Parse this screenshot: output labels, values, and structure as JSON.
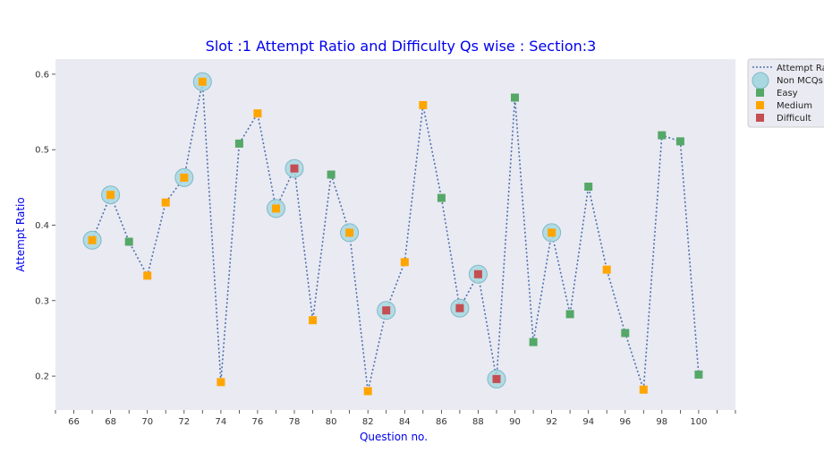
{
  "chart_data": {
    "type": "scatter",
    "title": "Slot :1 Attempt Ratio and Difficulty Qs wise :   Section:3",
    "xlabel": "Question no.",
    "ylabel": "Attempt Ratio",
    "xlim": [
      65,
      102
    ],
    "ylim": [
      0.155,
      0.62
    ],
    "x_ticks": [
      66,
      68,
      70,
      72,
      74,
      76,
      78,
      80,
      82,
      84,
      86,
      88,
      90,
      92,
      94,
      96,
      98,
      100
    ],
    "y_ticks": [
      0.2,
      0.3,
      0.4,
      0.5,
      0.6
    ],
    "y_tick_labels": [
      "0.2",
      "0.3",
      "0.4",
      "0.5",
      "0.6"
    ],
    "grid": false,
    "legend_position": "outside-top-right",
    "legend": {
      "line": "Attempt Rat",
      "non_mcq": "Non MCQs",
      "easy": "Easy",
      "medium": "Medium",
      "difficult": "Difficult"
    },
    "colors": {
      "background": "#eaeaf2",
      "line": "#4c72b0",
      "non_mcq": "#a8d8e0",
      "non_mcq_edge": "#7fb9c7",
      "easy": "#55a868",
      "medium": "#ffa500",
      "difficult": "#c44e52",
      "title": "#0000ee"
    },
    "points": [
      {
        "x": 67,
        "y": 0.38,
        "difficulty": "medium",
        "non_mcq": true
      },
      {
        "x": 68,
        "y": 0.44,
        "difficulty": "medium",
        "non_mcq": true
      },
      {
        "x": 69,
        "y": 0.378,
        "difficulty": "easy",
        "non_mcq": false
      },
      {
        "x": 70,
        "y": 0.333,
        "difficulty": "medium",
        "non_mcq": false
      },
      {
        "x": 71,
        "y": 0.43,
        "difficulty": "medium",
        "non_mcq": false
      },
      {
        "x": 72,
        "y": 0.463,
        "difficulty": "medium",
        "non_mcq": true
      },
      {
        "x": 73,
        "y": 0.59,
        "difficulty": "medium",
        "non_mcq": true
      },
      {
        "x": 74,
        "y": 0.192,
        "difficulty": "medium",
        "non_mcq": false
      },
      {
        "x": 75,
        "y": 0.508,
        "difficulty": "easy",
        "non_mcq": false
      },
      {
        "x": 76,
        "y": 0.548,
        "difficulty": "medium",
        "non_mcq": false
      },
      {
        "x": 77,
        "y": 0.422,
        "difficulty": "medium",
        "non_mcq": true
      },
      {
        "x": 78,
        "y": 0.475,
        "difficulty": "difficult",
        "non_mcq": true
      },
      {
        "x": 79,
        "y": 0.274,
        "difficulty": "medium",
        "non_mcq": false
      },
      {
        "x": 80,
        "y": 0.467,
        "difficulty": "easy",
        "non_mcq": false
      },
      {
        "x": 81,
        "y": 0.39,
        "difficulty": "medium",
        "non_mcq": true
      },
      {
        "x": 82,
        "y": 0.18,
        "difficulty": "medium",
        "non_mcq": false
      },
      {
        "x": 83,
        "y": 0.287,
        "difficulty": "difficult",
        "non_mcq": true
      },
      {
        "x": 84,
        "y": 0.351,
        "difficulty": "medium",
        "non_mcq": false
      },
      {
        "x": 85,
        "y": 0.559,
        "difficulty": "medium",
        "non_mcq": false
      },
      {
        "x": 86,
        "y": 0.436,
        "difficulty": "easy",
        "non_mcq": false
      },
      {
        "x": 87,
        "y": 0.29,
        "difficulty": "difficult",
        "non_mcq": true
      },
      {
        "x": 88,
        "y": 0.335,
        "difficulty": "difficult",
        "non_mcq": true
      },
      {
        "x": 89,
        "y": 0.196,
        "difficulty": "difficult",
        "non_mcq": true
      },
      {
        "x": 90,
        "y": 0.569,
        "difficulty": "easy",
        "non_mcq": false
      },
      {
        "x": 91,
        "y": 0.245,
        "difficulty": "easy",
        "non_mcq": false
      },
      {
        "x": 92,
        "y": 0.39,
        "difficulty": "medium",
        "non_mcq": true
      },
      {
        "x": 93,
        "y": 0.282,
        "difficulty": "easy",
        "non_mcq": false
      },
      {
        "x": 94,
        "y": 0.451,
        "difficulty": "easy",
        "non_mcq": false
      },
      {
        "x": 95,
        "y": 0.341,
        "difficulty": "medium",
        "non_mcq": false
      },
      {
        "x": 96,
        "y": 0.257,
        "difficulty": "easy",
        "non_mcq": false
      },
      {
        "x": 97,
        "y": 0.182,
        "difficulty": "medium",
        "non_mcq": false
      },
      {
        "x": 98,
        "y": 0.519,
        "difficulty": "easy",
        "non_mcq": false
      },
      {
        "x": 99,
        "y": 0.511,
        "difficulty": "easy",
        "non_mcq": false
      },
      {
        "x": 100,
        "y": 0.202,
        "difficulty": "easy",
        "non_mcq": false
      }
    ]
  }
}
